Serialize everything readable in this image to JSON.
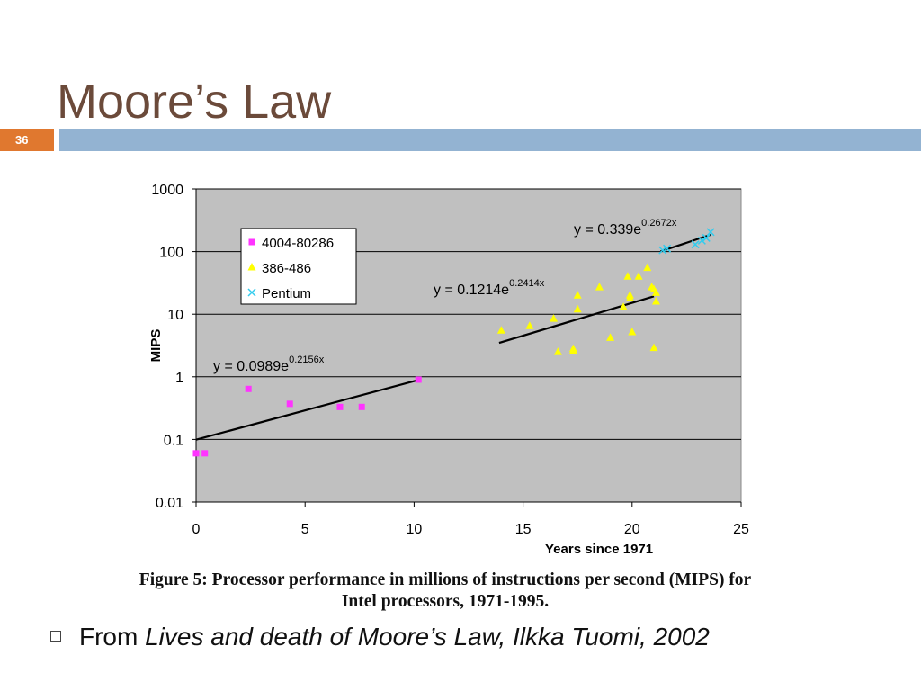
{
  "slide": {
    "title": "Moore’s Law",
    "number": "36",
    "bullet_prefix": "From ",
    "bullet_source": "Lives and death of Moore’s Law, Ilkka Tuomi, 2002",
    "caption_line1": "Figure 5: Processor performance in millions of instructions per second (MIPS) for",
    "caption_line2": "Intel processors, 1971-1995."
  },
  "colors": {
    "title": "#6b4a3a",
    "number_box": "#e0782f",
    "header_bar": "#93b3d2",
    "plot_bg": "#c0c0c0"
  },
  "chart_data": {
    "type": "scatter",
    "xlabel": "Years since 1971",
    "ylabel": "MIPS",
    "xlim": [
      0,
      25
    ],
    "ylim": [
      0.01,
      1000
    ],
    "y_scale": "log",
    "x_ticks": [
      "0",
      "5",
      "10",
      "15",
      "20",
      "25"
    ],
    "y_ticks": [
      "1000",
      "100",
      "10",
      "1",
      "0.1",
      "0.01"
    ],
    "grid": "horizontal",
    "legend_position": "top-left",
    "series": [
      {
        "name": "4004-80286",
        "marker": "square",
        "color": "#ff33ff",
        "points": [
          [
            0,
            0.06
          ],
          [
            0.4,
            0.06
          ],
          [
            2.4,
            0.64
          ],
          [
            4.3,
            0.37
          ],
          [
            6.6,
            0.33
          ],
          [
            7.6,
            0.33
          ],
          [
            10.2,
            0.9
          ]
        ],
        "trend": {
          "label_base": "y = 0.0989e",
          "label_exp": "0.2156x",
          "x_range": [
            0,
            10.2
          ],
          "a": 0.0989,
          "b": 0.2156
        }
      },
      {
        "name": "386-486",
        "marker": "triangle",
        "color": "#ffff00",
        "points": [
          [
            14,
            5.5
          ],
          [
            15.3,
            6.5
          ],
          [
            16.4,
            8.5
          ],
          [
            16.6,
            2.5
          ],
          [
            17.3,
            2.6
          ],
          [
            17.3,
            2.8
          ],
          [
            17.5,
            12
          ],
          [
            17.5,
            20
          ],
          [
            18.5,
            27
          ],
          [
            19,
            4.2
          ],
          [
            19.6,
            13
          ],
          [
            19.8,
            40
          ],
          [
            19.9,
            20
          ],
          [
            19.9,
            18
          ],
          [
            20,
            5.2
          ],
          [
            20.3,
            40
          ],
          [
            20.7,
            55
          ],
          [
            20.9,
            27
          ],
          [
            21,
            25
          ],
          [
            21,
            2.9
          ],
          [
            21.1,
            22
          ],
          [
            21.1,
            16
          ]
        ],
        "trend": {
          "label_base": "y = 0.1214e",
          "label_exp": "0.2414x",
          "x_range": [
            13.9,
            21
          ],
          "a": 0.1214,
          "b": 0.2414
        }
      },
      {
        "name": "Pentium",
        "marker": "x",
        "color": "#33ccee",
        "points": [
          [
            21.4,
            105
          ],
          [
            21.6,
            112
          ],
          [
            22.9,
            130
          ],
          [
            23.2,
            150
          ],
          [
            23.4,
            165
          ],
          [
            23.6,
            205
          ]
        ],
        "trend": {
          "label_base": "y = 0.339e",
          "label_exp": "0.2672x",
          "x_range": [
            21.3,
            23.6
          ],
          "a": 0.339,
          "b": 0.2672
        }
      }
    ]
  }
}
